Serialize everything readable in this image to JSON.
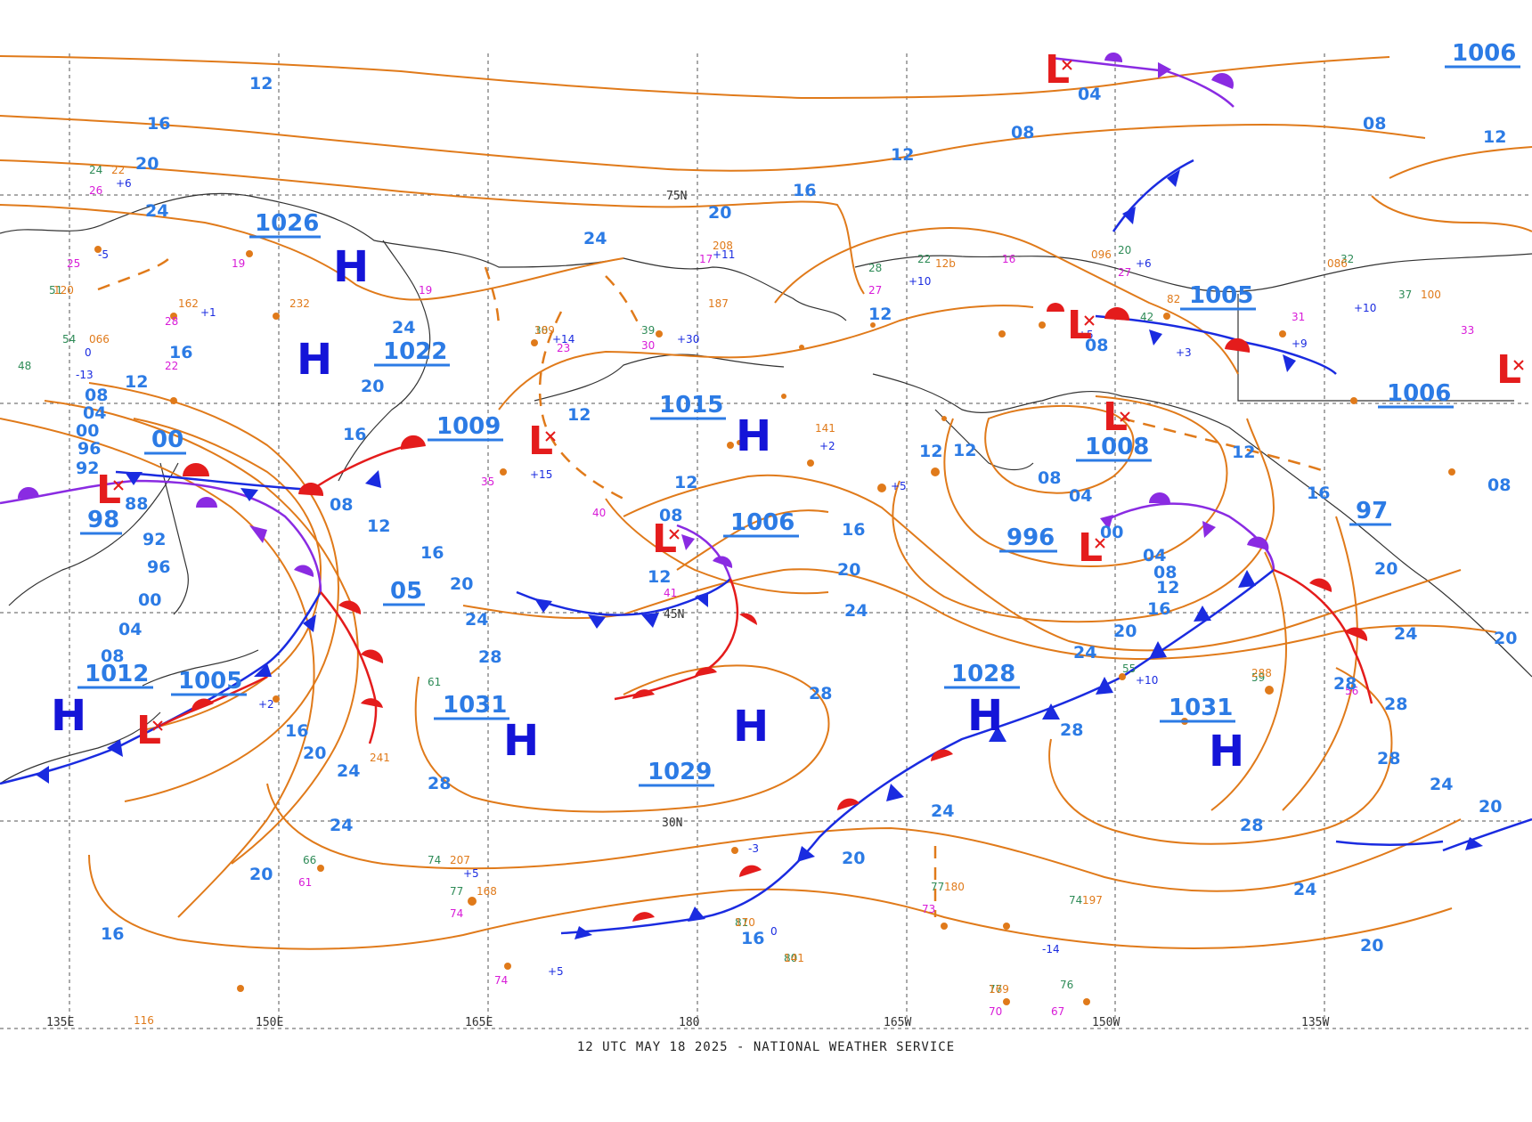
{
  "footer": "12 UTC MAY 18 2025 - NATIONAL WEATHER SERVICE",
  "colors": {
    "isobar": "#e07a1a",
    "label": "#2c7be5",
    "high": "#1414d8",
    "low": "#e41c1c",
    "cold_front": "#1a2be0",
    "warm_front": "#e41c1c",
    "occluded_front": "#8a2be2",
    "grid": "#555555",
    "coast": "#333333"
  },
  "grid_labels": {
    "longitudes": [
      "135E",
      "150E",
      "165E",
      "180",
      "165W",
      "150W",
      "135W"
    ],
    "latitudes": [
      "75N",
      "45N",
      "30N"
    ]
  },
  "pressure_centers": [
    {
      "type": "H",
      "value": "1026"
    },
    {
      "type": "H",
      "value": "1022"
    },
    {
      "type": "L",
      "value": "1009"
    },
    {
      "type": "H",
      "value": "1015"
    },
    {
      "type": "L",
      "value": "1006"
    },
    {
      "type": "L",
      "value": "1005"
    },
    {
      "type": "L",
      "value": "1008"
    },
    {
      "type": "L",
      "value": "996"
    },
    {
      "type": "H",
      "value": "1006"
    },
    {
      "type": "L",
      "value": "97"
    },
    {
      "type": "L",
      "value": "98"
    },
    {
      "type": "L",
      "value": "00"
    },
    {
      "type": "L",
      "value": "05"
    },
    {
      "type": "H",
      "value": "1012"
    },
    {
      "type": "L",
      "value": "1005"
    },
    {
      "type": "H",
      "value": "1031"
    },
    {
      "type": "H",
      "value": "1029"
    },
    {
      "type": "H",
      "value": "1028"
    },
    {
      "type": "H",
      "value": "1031"
    }
  ],
  "isobar_labels": [
    "12",
    "16",
    "20",
    "24",
    "28",
    "08",
    "04",
    "00",
    "96",
    "92",
    "88",
    "04",
    "08",
    "12",
    "16",
    "20",
    "24",
    "28"
  ]
}
